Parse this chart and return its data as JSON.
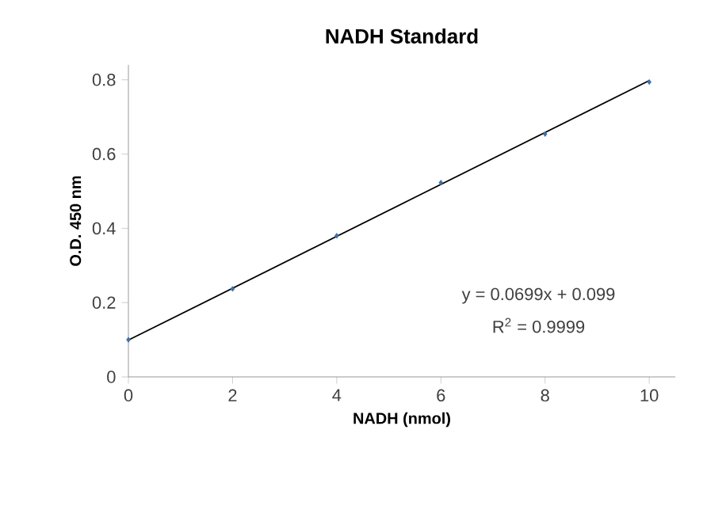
{
  "chart_data": {
    "type": "scatter",
    "title": "NADH Standard",
    "xlabel": "NADH (nmol)",
    "ylabel": "O.D. 450 nm",
    "xlim": [
      0,
      10.5
    ],
    "ylim": [
      0,
      0.84
    ],
    "xticks": [
      0,
      2,
      4,
      6,
      8,
      10
    ],
    "yticks": [
      0,
      0.2,
      0.4,
      0.6,
      0.8
    ],
    "grid": false,
    "series": [
      {
        "marker": "diamond",
        "color": "#3f6fa8",
        "x": [
          0,
          2,
          4,
          6,
          8,
          10
        ],
        "values": [
          0.1,
          0.237,
          0.38,
          0.523,
          0.654,
          0.794
        ]
      },
      {
        "type": "line",
        "marker": "none",
        "color": "#000000",
        "x": [
          0,
          10
        ],
        "values": [
          0.099,
          0.798
        ]
      }
    ],
    "annotations": [
      "y = 0.0699x + 0.099",
      "R$^{2}$ = 0.9999"
    ]
  }
}
